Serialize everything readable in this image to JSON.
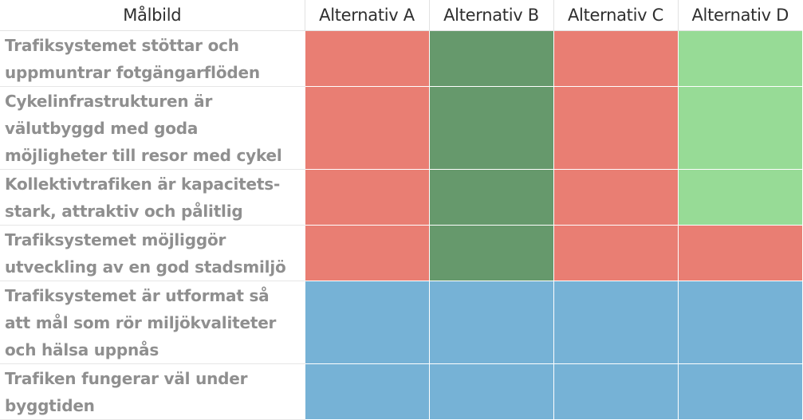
{
  "colors": {
    "negative": "#e97e73",
    "dark_positive": "#66996c",
    "light_positive": "#97db96",
    "neutral": "#76b2d6"
  },
  "chart_data": {
    "type": "table",
    "corner_header": "Målbild",
    "columns": [
      "Alternativ A",
      "Alternativ B",
      "Alternativ C",
      "Alternativ D"
    ],
    "rows": [
      {
        "label": "Trafiksystemet  stöttar och uppmuntrar fotgängarflöden",
        "cells": [
          "negative",
          "dark_positive",
          "negative",
          "light_positive"
        ]
      },
      {
        "label": "Cykelinfrastrukturen är välutbyggd med goda möjligheter till resor med cykel",
        "cells": [
          "negative",
          "dark_positive",
          "negative",
          "light_positive"
        ]
      },
      {
        "label": "Kollektivtrafiken är kapacitets-stark, attraktiv och pålitlig",
        "cells": [
          "negative",
          "dark_positive",
          "negative",
          "light_positive"
        ]
      },
      {
        "label": "Trafiksystemet möjliggör utveckling av en god stadsmiljö",
        "cells": [
          "negative",
          "dark_positive",
          "negative",
          "negative"
        ]
      },
      {
        "label": "Trafiksystemet är utformat så att mål som rör miljökvaliteter och hälsa uppnås",
        "cells": [
          "neutral",
          "neutral",
          "neutral",
          "neutral"
        ]
      },
      {
        "label": "Trafiken fungerar väl under byggtiden",
        "cells": [
          "neutral",
          "neutral",
          "neutral",
          "neutral"
        ]
      }
    ]
  }
}
